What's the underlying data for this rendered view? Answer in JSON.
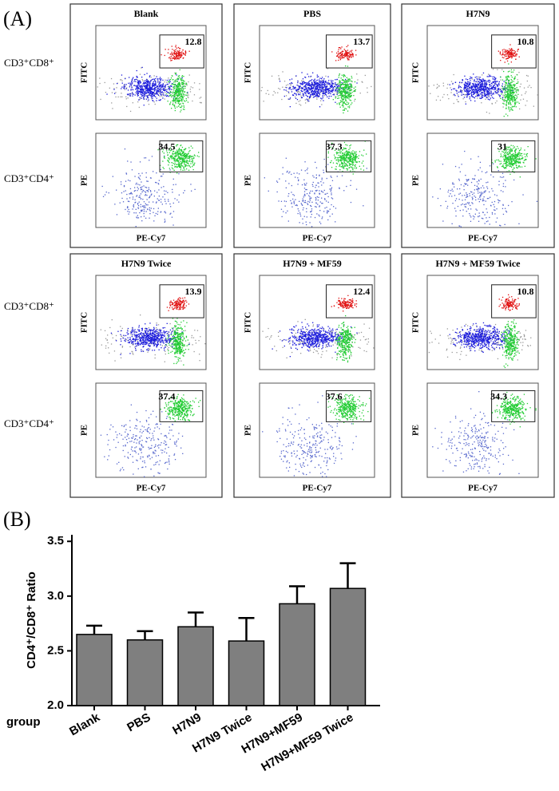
{
  "panel_a": {
    "label": "(A)",
    "row_labels": {
      "cd8": "CD3⁺CD8⁺",
      "cd4": "CD3⁺CD4⁺"
    },
    "axis_labels": {
      "fitc": "FITC",
      "pe": "PE",
      "pe_cy7": "PE-Cy7"
    },
    "plots": [
      {
        "title": "Blank",
        "cd8_gate": 12.8,
        "cd4_gate": 34.5
      },
      {
        "title": "PBS",
        "cd8_gate": 13.7,
        "cd4_gate": 37.3
      },
      {
        "title": "H7N9",
        "cd8_gate": 10.8,
        "cd4_gate": 31
      },
      {
        "title": "H7N9 Twice",
        "cd8_gate": 13.9,
        "cd4_gate": 37.4
      },
      {
        "title": "H7N9 + MF59",
        "cd8_gate": 12.4,
        "cd4_gate": 37.6
      },
      {
        "title": "H7N9 + MF59 Twice",
        "cd8_gate": 10.8,
        "cd4_gate": 34.3
      }
    ]
  },
  "chart_data": {
    "type": "bar",
    "panel_label": "(B)",
    "ylabel": "CD4⁺/CD8⁺ Ratio",
    "xlabel": "group",
    "categories": [
      "Blank",
      "PBS",
      "H7N9",
      "H7N9 Twice",
      "H7N9+MF59",
      "H7N9+MF59 Twice"
    ],
    "values": [
      2.65,
      2.6,
      2.72,
      2.59,
      2.93,
      3.07
    ],
    "errors": [
      0.08,
      0.08,
      0.13,
      0.21,
      0.16,
      0.23
    ],
    "color": "#7f7f7f",
    "ylim": [
      2.0,
      3.56
    ],
    "yticks": [
      {
        "value": 2.0,
        "label": "2.0"
      },
      2.5,
      {
        "value": 3.0,
        "label": "3.0"
      },
      3.5
    ]
  }
}
